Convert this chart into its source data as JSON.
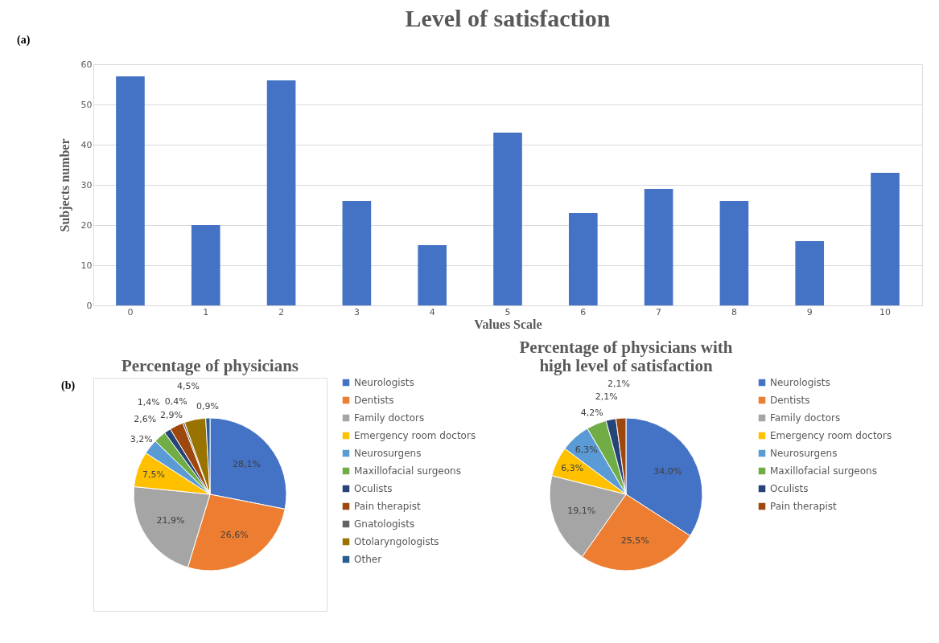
{
  "chart_data": [
    {
      "type": "bar",
      "title": "Level of satisfaction",
      "xlabel": "Values Scale",
      "ylabel": "Subjects  number",
      "categories": [
        "0",
        "1",
        "2",
        "3",
        "4",
        "5",
        "6",
        "7",
        "8",
        "9",
        "10"
      ],
      "values": [
        57,
        20,
        56,
        26,
        15,
        43,
        23,
        29,
        26,
        16,
        33
      ],
      "color": "#4472c4",
      "ylim": [
        0,
        60
      ],
      "yticks": [
        0,
        10,
        20,
        30,
        40,
        50,
        60
      ],
      "grid": "y",
      "annotations": [
        "(a)"
      ]
    },
    {
      "type": "pie",
      "title": "Percentage of physicians",
      "categories": [
        "Neurologists",
        "Dentists",
        "Family doctors",
        "Emergency room doctors",
        "Neurosurgens",
        "Maxillofacial surgeons",
        "Oculists",
        "Pain therapist",
        "Gnatologists",
        "Otolaryngologists",
        "Other"
      ],
      "values": [
        28.1,
        26.6,
        21.9,
        7.5,
        3.2,
        2.6,
        1.4,
        2.9,
        0.4,
        4.5,
        0.9
      ],
      "value_labels": [
        "28,1%",
        "26,6%",
        "21,9%",
        "7,5%",
        "3,2%",
        "2,6%",
        "1,4%",
        "2,9%",
        "0,4%",
        "4,5%",
        "0,9%"
      ],
      "colors": [
        "#4472c4",
        "#ed7d31",
        "#a5a5a5",
        "#ffc000",
        "#5b9bd5",
        "#70ad47",
        "#264478",
        "#9e480e",
        "#636363",
        "#997300",
        "#255e91"
      ],
      "legend": "right",
      "annotations": [
        "(b)"
      ]
    },
    {
      "type": "pie",
      "title": "Percentage of physicians with high level of satisfaction",
      "categories": [
        "Neurologists",
        "Dentists",
        "Family doctors",
        "Emergency room doctors",
        "Neurosurgens",
        "Maxillofacial surgeons",
        "Oculists",
        "Pain therapist"
      ],
      "values": [
        34.0,
        25.5,
        19.1,
        6.3,
        6.3,
        4.2,
        2.1,
        2.1
      ],
      "value_labels": [
        "34,0%",
        "25,5%",
        "19,1%",
        "6,3%",
        "6,3%",
        "4,2%",
        "2,1%",
        "2,1%"
      ],
      "colors": [
        "#4472c4",
        "#ed7d31",
        "#a5a5a5",
        "#ffc000",
        "#5b9bd5",
        "#70ad47",
        "#264478",
        "#9e480e"
      ],
      "legend": "right"
    }
  ]
}
